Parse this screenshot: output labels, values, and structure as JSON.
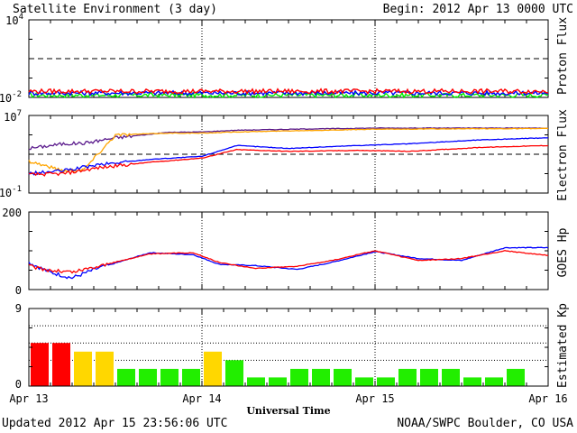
{
  "header": {
    "title": "Satellite Environment (3 day)",
    "begin": "Begin:  2012 Apr 13 0000 UTC"
  },
  "footer": {
    "updated": "Updated 2012 Apr 15 23:56:06 UTC",
    "source": "NOAA/SWPC Boulder, CO USA"
  },
  "colors": {
    "red": "#ff0000",
    "blue": "#0000ff",
    "green": "#00ee00",
    "orange": "#ffa500",
    "purple": "#5a1a8c",
    "yellow": "#ffd700",
    "kp_green": "#22ee00"
  },
  "chart_data": [
    {
      "type": "line",
      "ylabel": "Proton Flux",
      "yscale": "log",
      "ylim": [
        0.01,
        10000
      ],
      "ytick_labels": {
        "top_base": "10",
        "top_exp": "4",
        "bottom_base": "10",
        "bottom_exp": "-2"
      },
      "threshold": 10,
      "x_range_days": [
        0,
        3
      ],
      "series": [
        {
          "color": "red",
          "level": 0.03
        },
        {
          "color": "blue",
          "level": 0.022
        },
        {
          "color": "green",
          "level": 0.015
        }
      ]
    },
    {
      "type": "line",
      "ylabel": "Electron Flux",
      "yscale": "log",
      "ylim": [
        0.1,
        10000000
      ],
      "ytick_labels": {
        "top_base": "10",
        "top_exp": "7",
        "bottom_base": "10",
        "bottom_exp": "-1"
      },
      "threshold": 1000,
      "x_range_days": [
        0,
        3
      ],
      "series": [
        {
          "color": "purple",
          "x": [
            0,
            0.2,
            0.32,
            0.5,
            0.8,
            1.0,
            1.2,
            1.6,
            2.0,
            2.5,
            3.0
          ],
          "y": [
            4000,
            12000,
            14000,
            50000,
            180000,
            200000,
            300000,
            400000,
            500000,
            500000,
            500000
          ]
        },
        {
          "color": "orange",
          "x": [
            0,
            0.2,
            0.32,
            0.5,
            0.8,
            1.0,
            1.2,
            1.6,
            2.0,
            2.5,
            3.0
          ],
          "y": [
            200,
            20,
            30,
            100000,
            150000,
            150000,
            200000,
            280000,
            380000,
            420000,
            450000
          ]
        },
        {
          "color": "blue",
          "x": [
            0,
            0.2,
            0.4,
            0.7,
            1.0,
            1.2,
            1.5,
            1.9,
            2.2,
            2.6,
            3.0
          ],
          "y": [
            10,
            20,
            80,
            300,
            600,
            8000,
            4000,
            8000,
            12000,
            30000,
            50000
          ]
        },
        {
          "color": "red",
          "x": [
            0,
            0.2,
            0.4,
            0.7,
            1.0,
            1.2,
            1.5,
            1.9,
            2.2,
            2.6,
            3.0
          ],
          "y": [
            8,
            10,
            40,
            150,
            400,
            3000,
            2000,
            2500,
            2000,
            5000,
            8000
          ]
        }
      ]
    },
    {
      "type": "line",
      "ylabel": "GOES Hp",
      "ylim": [
        0,
        200
      ],
      "ytick_labels": [
        "0",
        "200"
      ],
      "x_range_days": [
        0,
        3
      ],
      "series": [
        {
          "color": "blue",
          "x": [
            0,
            0.12,
            0.25,
            0.4,
            0.7,
            0.95,
            1.1,
            1.3,
            1.55,
            1.75,
            2.0,
            2.25,
            2.5,
            2.75,
            3.0
          ],
          "y": [
            70,
            45,
            30,
            55,
            95,
            90,
            65,
            62,
            52,
            70,
            98,
            80,
            75,
            108,
            108
          ]
        },
        {
          "color": "red",
          "x": [
            0,
            0.12,
            0.25,
            0.4,
            0.7,
            0.95,
            1.1,
            1.3,
            1.55,
            1.75,
            2.0,
            2.25,
            2.5,
            2.75,
            3.0
          ],
          "y": [
            60,
            50,
            45,
            60,
            92,
            95,
            70,
            55,
            60,
            75,
            100,
            75,
            80,
            100,
            88
          ]
        }
      ]
    },
    {
      "type": "bar",
      "ylabel": "Estimated Kp",
      "ylim": [
        0,
        9
      ],
      "ytick_labels": [
        "0",
        "9"
      ],
      "x_range_days": [
        0,
        3
      ],
      "bin_hours": 3,
      "gridlines": [
        3,
        5,
        7,
        9
      ],
      "values": [
        5,
        5,
        4,
        4,
        2,
        2,
        2,
        2,
        4,
        3,
        1,
        1,
        2,
        2,
        2,
        1,
        1,
        2,
        2,
        2,
        1,
        1,
        2,
        0
      ],
      "bar_colors": [
        "red",
        "red",
        "yellow",
        "yellow",
        "kp_green",
        "kp_green",
        "kp_green",
        "kp_green",
        "yellow",
        "kp_green",
        "kp_green",
        "kp_green",
        "kp_green",
        "kp_green",
        "kp_green",
        "kp_green",
        "kp_green",
        "kp_green",
        "kp_green",
        "kp_green",
        "kp_green",
        "kp_green",
        "kp_green",
        "kp_green"
      ]
    }
  ],
  "x_axis": {
    "label": "Universal Time",
    "ticks": [
      "Apr 13",
      "Apr 14",
      "Apr 15",
      "Apr 16"
    ]
  }
}
